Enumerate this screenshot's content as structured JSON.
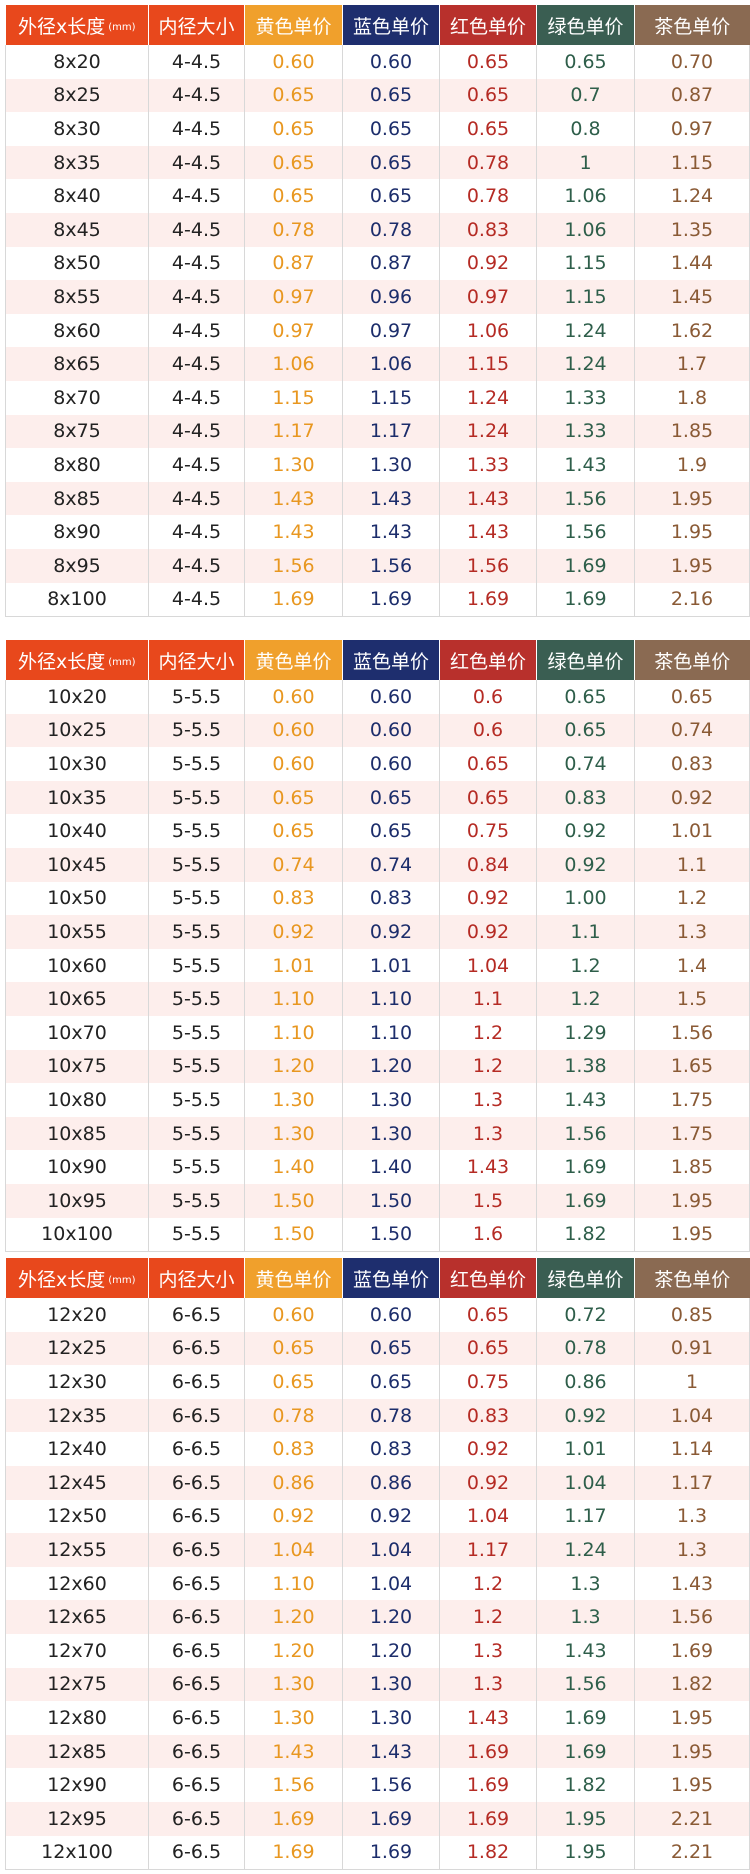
{
  "colors": {
    "header_size": "#e8481c",
    "header_inner": "#e8481c",
    "header_yellow": "#f0a02c",
    "header_blue": "#1e2e6e",
    "header_red": "#b8302c",
    "header_green": "#3a5e52",
    "header_tea": "#8a6a52",
    "row_alt": "#fdeeec"
  },
  "headers": {
    "size": "外径x长度",
    "size_unit": "(mm)",
    "inner": "内径大小",
    "yellow": "黄色单价",
    "blue": "蓝色单价",
    "red": "红色单价",
    "green": "绿色单价",
    "tea": "茶色单价"
  },
  "tables": [
    {
      "rows": [
        [
          "8x20",
          "4-4.5",
          "0.60",
          "0.60",
          "0.65",
          "0.65",
          "0.70"
        ],
        [
          "8x25",
          "4-4.5",
          "0.65",
          "0.65",
          "0.65",
          "0.7",
          "0.87"
        ],
        [
          "8x30",
          "4-4.5",
          "0.65",
          "0.65",
          "0.65",
          "0.8",
          "0.97"
        ],
        [
          "8x35",
          "4-4.5",
          "0.65",
          "0.65",
          "0.78",
          "1",
          "1.15"
        ],
        [
          "8x40",
          "4-4.5",
          "0.65",
          "0.65",
          "0.78",
          "1.06",
          "1.24"
        ],
        [
          "8x45",
          "4-4.5",
          "0.78",
          "0.78",
          "0.83",
          "1.06",
          "1.35"
        ],
        [
          "8x50",
          "4-4.5",
          "0.87",
          "0.87",
          "0.92",
          "1.15",
          "1.44"
        ],
        [
          "8x55",
          "4-4.5",
          "0.97",
          "0.96",
          "0.97",
          "1.15",
          "1.45"
        ],
        [
          "8x60",
          "4-4.5",
          "0.97",
          "0.97",
          "1.06",
          "1.24",
          "1.62"
        ],
        [
          "8x65",
          "4-4.5",
          "1.06",
          "1.06",
          "1.15",
          "1.24",
          "1.7"
        ],
        [
          "8x70",
          "4-4.5",
          "1.15",
          "1.15",
          "1.24",
          "1.33",
          "1.8"
        ],
        [
          "8x75",
          "4-4.5",
          "1.17",
          "1.17",
          "1.24",
          "1.33",
          "1.85"
        ],
        [
          "8x80",
          "4-4.5",
          "1.30",
          "1.30",
          "1.33",
          "1.43",
          "1.9"
        ],
        [
          "8x85",
          "4-4.5",
          "1.43",
          "1.43",
          "1.43",
          "1.56",
          "1.95"
        ],
        [
          "8x90",
          "4-4.5",
          "1.43",
          "1.43",
          "1.43",
          "1.56",
          "1.95"
        ],
        [
          "8x95",
          "4-4.5",
          "1.56",
          "1.56",
          "1.56",
          "1.69",
          "1.95"
        ],
        [
          "8x100",
          "4-4.5",
          "1.69",
          "1.69",
          "1.69",
          "1.69",
          "2.16"
        ]
      ]
    },
    {
      "rows": [
        [
          "10x20",
          "5-5.5",
          "0.60",
          "0.60",
          "0.6",
          "0.65",
          "0.65"
        ],
        [
          "10x25",
          "5-5.5",
          "0.60",
          "0.60",
          "0.6",
          "0.65",
          "0.74"
        ],
        [
          "10x30",
          "5-5.5",
          "0.60",
          "0.60",
          "0.65",
          "0.74",
          "0.83"
        ],
        [
          "10x35",
          "5-5.5",
          "0.65",
          "0.65",
          "0.65",
          "0.83",
          "0.92"
        ],
        [
          "10x40",
          "5-5.5",
          "0.65",
          "0.65",
          "0.75",
          "0.92",
          "1.01"
        ],
        [
          "10x45",
          "5-5.5",
          "0.74",
          "0.74",
          "0.84",
          "0.92",
          "1.1"
        ],
        [
          "10x50",
          "5-5.5",
          "0.83",
          "0.83",
          "0.92",
          "1.00",
          "1.2"
        ],
        [
          "10x55",
          "5-5.5",
          "0.92",
          "0.92",
          "0.92",
          "1.1",
          "1.3"
        ],
        [
          "10x60",
          "5-5.5",
          "1.01",
          "1.01",
          "1.04",
          "1.2",
          "1.4"
        ],
        [
          "10x65",
          "5-5.5",
          "1.10",
          "1.10",
          "1.1",
          "1.2",
          "1.5"
        ],
        [
          "10x70",
          "5-5.5",
          "1.10",
          "1.10",
          "1.2",
          "1.29",
          "1.56"
        ],
        [
          "10x75",
          "5-5.5",
          "1.20",
          "1.20",
          "1.2",
          "1.38",
          "1.65"
        ],
        [
          "10x80",
          "5-5.5",
          "1.30",
          "1.30",
          "1.3",
          "1.43",
          "1.75"
        ],
        [
          "10x85",
          "5-5.5",
          "1.30",
          "1.30",
          "1.3",
          "1.56",
          "1.75"
        ],
        [
          "10x90",
          "5-5.5",
          "1.40",
          "1.40",
          "1.43",
          "1.69",
          "1.85"
        ],
        [
          "10x95",
          "5-5.5",
          "1.50",
          "1.50",
          "1.5",
          "1.69",
          "1.95"
        ],
        [
          "10x100",
          "5-5.5",
          "1.50",
          "1.50",
          "1.6",
          "1.82",
          "1.95"
        ]
      ]
    },
    {
      "rows": [
        [
          "12x20",
          "6-6.5",
          "0.60",
          "0.60",
          "0.65",
          "0.72",
          "0.85"
        ],
        [
          "12x25",
          "6-6.5",
          "0.65",
          "0.65",
          "0.65",
          "0.78",
          "0.91"
        ],
        [
          "12x30",
          "6-6.5",
          "0.65",
          "0.65",
          "0.75",
          "0.86",
          "1"
        ],
        [
          "12x35",
          "6-6.5",
          "0.78",
          "0.78",
          "0.83",
          "0.92",
          "1.04"
        ],
        [
          "12x40",
          "6-6.5",
          "0.83",
          "0.83",
          "0.92",
          "1.01",
          "1.14"
        ],
        [
          "12x45",
          "6-6.5",
          "0.86",
          "0.86",
          "0.92",
          "1.04",
          "1.17"
        ],
        [
          "12x50",
          "6-6.5",
          "0.92",
          "0.92",
          "1.04",
          "1.17",
          "1.3"
        ],
        [
          "12x55",
          "6-6.5",
          "1.04",
          "1.04",
          "1.17",
          "1.24",
          "1.3"
        ],
        [
          "12x60",
          "6-6.5",
          "1.10",
          "1.04",
          "1.2",
          "1.3",
          "1.43"
        ],
        [
          "12x65",
          "6-6.5",
          "1.20",
          "1.20",
          "1.2",
          "1.3",
          "1.56"
        ],
        [
          "12x70",
          "6-6.5",
          "1.20",
          "1.20",
          "1.3",
          "1.43",
          "1.69"
        ],
        [
          "12x75",
          "6-6.5",
          "1.30",
          "1.30",
          "1.3",
          "1.56",
          "1.82"
        ],
        [
          "12x80",
          "6-6.5",
          "1.30",
          "1.30",
          "1.43",
          "1.69",
          "1.95"
        ],
        [
          "12x85",
          "6-6.5",
          "1.43",
          "1.43",
          "1.69",
          "1.69",
          "1.95"
        ],
        [
          "12x90",
          "6-6.5",
          "1.56",
          "1.56",
          "1.69",
          "1.82",
          "1.95"
        ],
        [
          "12x95",
          "6-6.5",
          "1.69",
          "1.69",
          "1.69",
          "1.95",
          "2.21"
        ],
        [
          "12x100",
          "6-6.5",
          "1.69",
          "1.69",
          "1.82",
          "1.95",
          "2.21"
        ]
      ]
    }
  ]
}
